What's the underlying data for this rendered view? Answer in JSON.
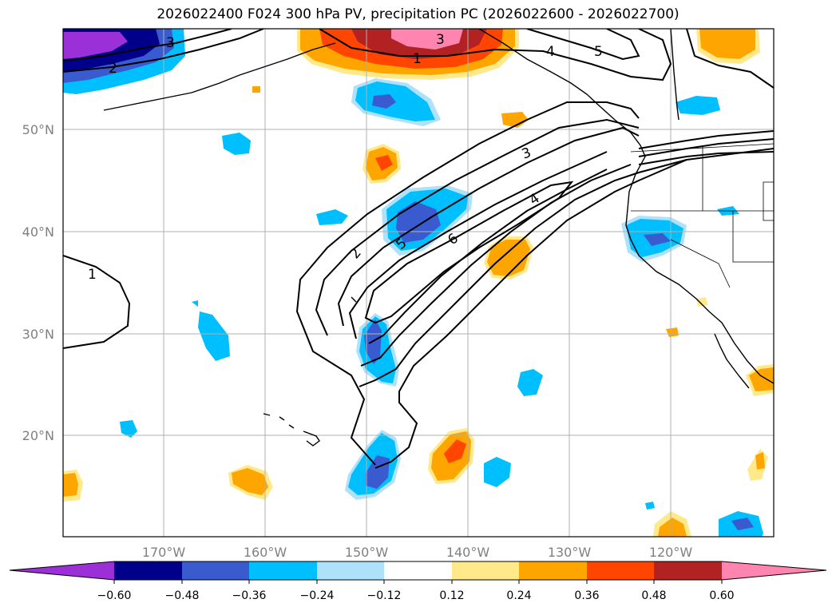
{
  "title": "2026022400 F024 300 hPa PV, precipitation PC (2026022600 - 2026022700)",
  "latitude_labels": [
    "50°N",
    "40°N",
    "30°N",
    "20°N"
  ],
  "longitude_labels": [
    "170°W",
    "160°W",
    "150°W",
    "140°W",
    "130°W",
    "120°W"
  ],
  "colorbar": {
    "tick_labels": [
      "−0.60",
      "−0.48",
      "−0.36",
      "−0.24",
      "−0.12",
      "0.12",
      "0.24",
      "0.36",
      "0.48",
      "0.60"
    ],
    "colors": [
      "#9b30d9",
      "#00008b",
      "#3a5bd0",
      "#00bfff",
      "#aee2fa",
      "#ffffff",
      "#ffe98a",
      "#ffa500",
      "#ff4500",
      "#b22222",
      "#ff85b0"
    ]
  },
  "contour_labels": [
    "1",
    "2",
    "3",
    "4",
    "5",
    "6",
    "1",
    "3",
    "4",
    "5",
    "3",
    "2"
  ],
  "colors": {
    "grid": "#b0b0b0",
    "contour": "#000000",
    "coast": "#000000"
  }
}
